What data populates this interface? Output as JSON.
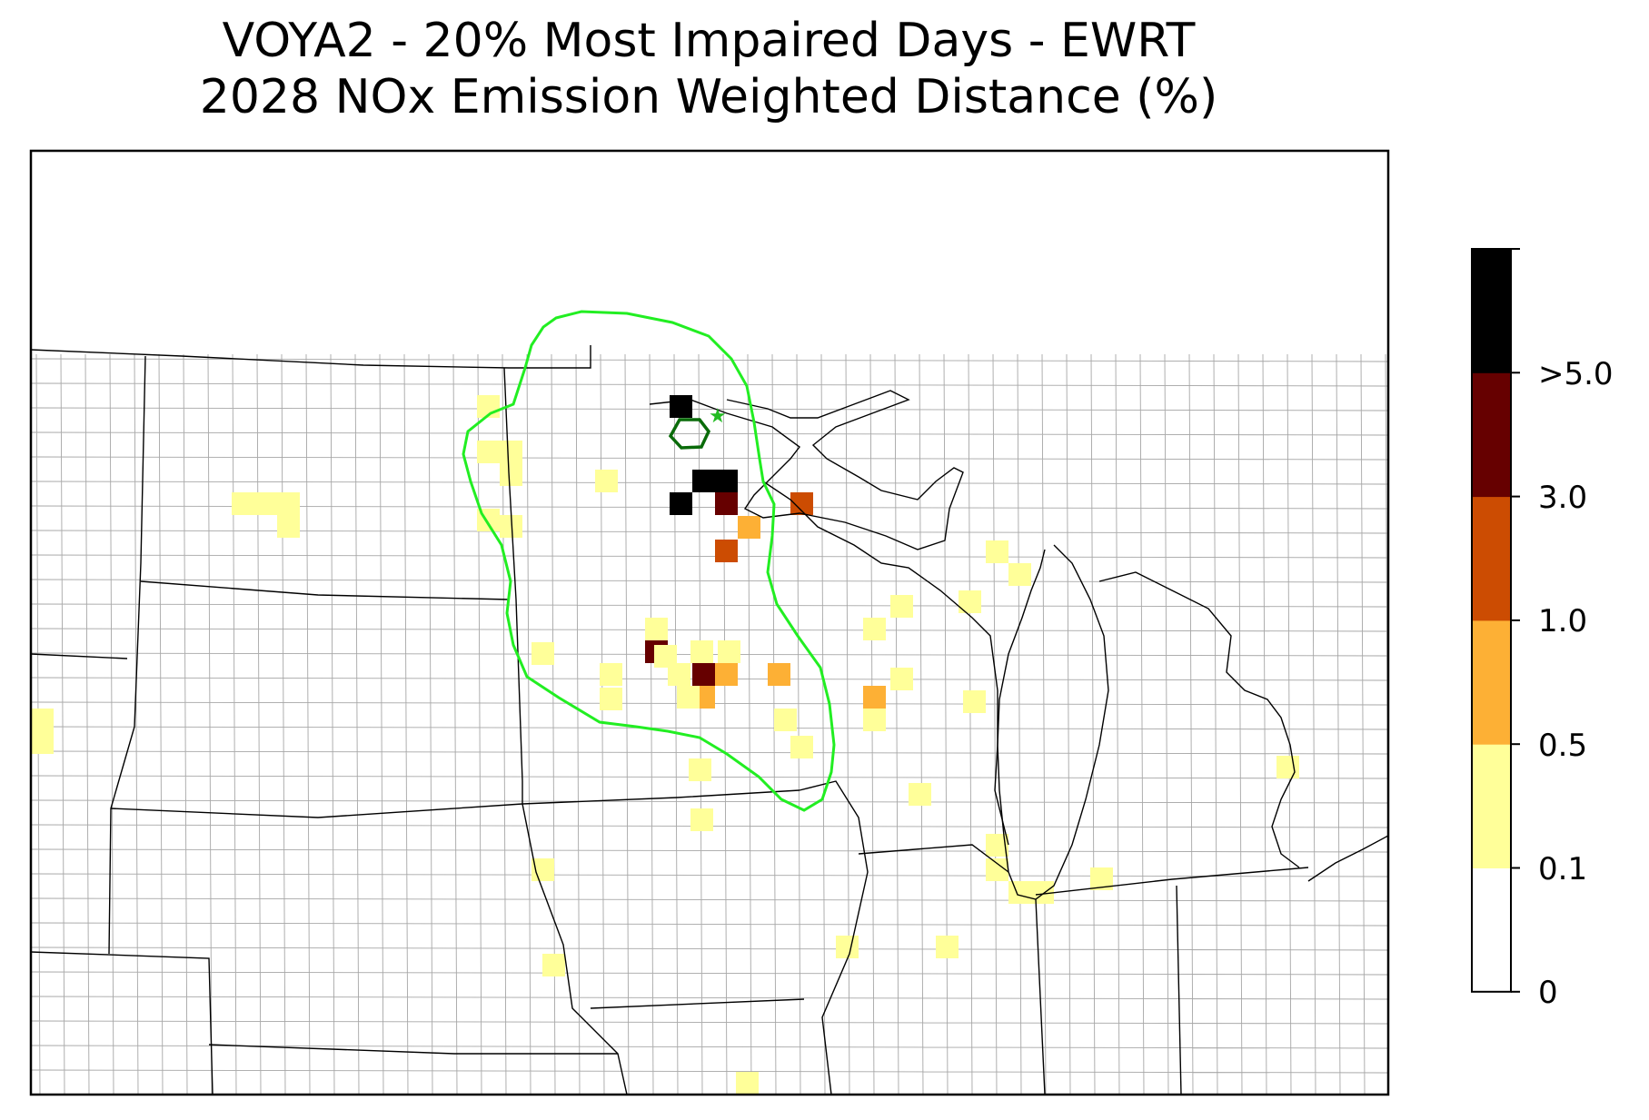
{
  "title": {
    "line1": "VOYA2 - 20% Most Impaired Days - EWRT",
    "line2": "2028 NOx Emission Weighted Distance (%)"
  },
  "colorbar": {
    "bins": [
      {
        "from": "0",
        "to": "0.1",
        "color": "#ffffff"
      },
      {
        "from": "0.1",
        "to": "0.5",
        "color": "#ffff99"
      },
      {
        "from": "0.5",
        "to": "1.0",
        "color": "#fdb035"
      },
      {
        "from": "1.0",
        "to": "3.0",
        "color": "#cc4c02"
      },
      {
        "from": "3.0",
        "to": ">5.0",
        "color": "#660000"
      },
      {
        "from": ">5.0",
        "to": "",
        "color": "#000000"
      }
    ],
    "tick_labels": [
      "0",
      "0.1",
      "0.5",
      "1.0",
      "3.0",
      ">5.0"
    ]
  },
  "colors": {
    "state_boundary": "#000000",
    "county_boundary": "#a6a6a6",
    "outer_contour": "#22ee22",
    "inner_contour": "#0a6b0a",
    "site_marker": "#22bb22"
  }
}
